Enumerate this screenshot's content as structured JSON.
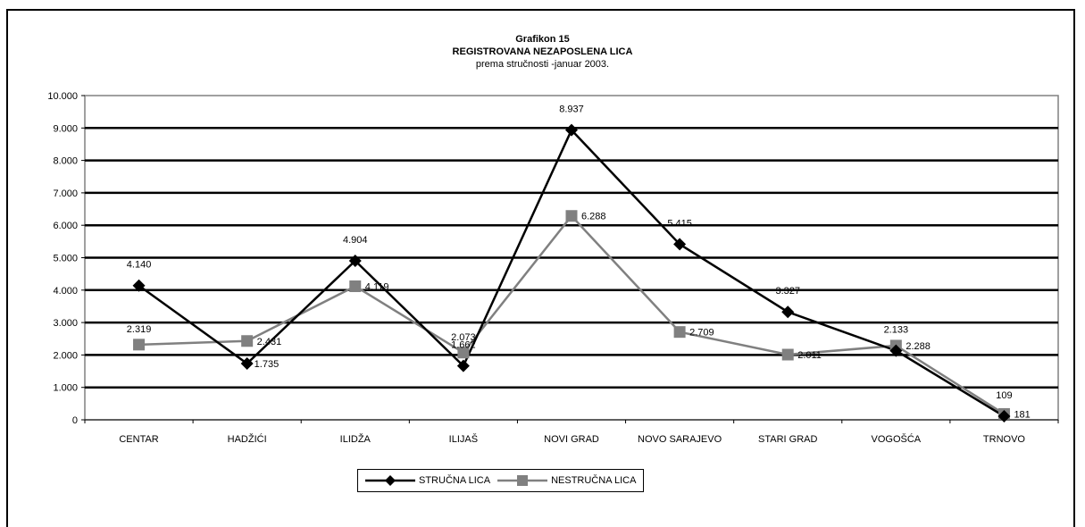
{
  "colors": {
    "series1": "#000000",
    "series2": "#808080",
    "grid": "#000000"
  },
  "chart_data": {
    "type": "line",
    "title": "Grafikon 15",
    "subtitle": "REGISTROVANA NEZAPOSLENA LICA",
    "subtitle2": "prema stručnosti -januar 2003.",
    "categories": [
      "CENTAR",
      "HADŽIĆI",
      "ILIDŽA",
      "ILIJAŠ",
      "NOVI GRAD",
      "NOVO SARAJEVO",
      "STARI GRAD",
      "VOGOŠĆA",
      "TRNOVO"
    ],
    "series": [
      {
        "name": "STRUČNA LICA",
        "marker": "diamond",
        "values": [
          4140,
          1735,
          4904,
          1662,
          8937,
          5415,
          3327,
          2133,
          109
        ],
        "labels": [
          "4.140",
          "1.735",
          "4.904",
          "1.662",
          "8.937",
          "5.415",
          "3.327",
          "2.133",
          "109"
        ]
      },
      {
        "name": "NESTRUČNA LICA",
        "marker": "square",
        "values": [
          2319,
          2431,
          4119,
          2073,
          6288,
          2709,
          2011,
          2288,
          181
        ],
        "labels": [
          "2.319",
          "2.431",
          "4.119",
          "2.073",
          "6.288",
          "2.709",
          "2.011",
          "2.288",
          "181"
        ]
      }
    ],
    "yticks": [
      "0",
      "1.000",
      "2.000",
      "3.000",
      "4.000",
      "5.000",
      "6.000",
      "7.000",
      "8.000",
      "9.000",
      "10.000"
    ],
    "ylim": [
      0,
      10000
    ],
    "grid": true,
    "legend_position": "bottom"
  }
}
